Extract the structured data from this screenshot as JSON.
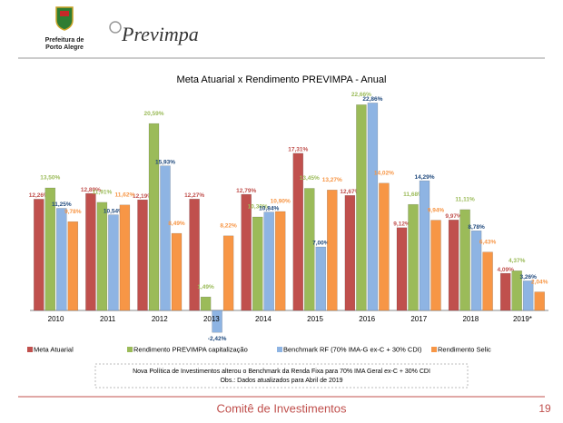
{
  "header": {
    "logo_text_1": "Prefeitura de",
    "logo_text_2": "Porto Alegre",
    "brand": "Previmpa"
  },
  "chart_data": {
    "type": "bar",
    "title": "Meta Atuarial x Rendimento PREVIMPA - Anual",
    "categories": [
      "2010",
      "2011",
      "2012",
      "2013",
      "2014",
      "2015",
      "2016",
      "2017",
      "2018",
      "2019*"
    ],
    "ylim": [
      -3,
      25
    ],
    "series": [
      {
        "name": "Meta Atuarial",
        "color": "#c0504d",
        "values": [
          12.26,
          12.89,
          12.19,
          12.27,
          12.79,
          17.31,
          12.67,
          9.12,
          9.97,
          4.09
        ],
        "value_labels": [
          "12,26%",
          "12,89%",
          "12,19%",
          "12,27%",
          "12,79%",
          "17,31%",
          "12,67%",
          "9,12%",
          "9,97%",
          "4,09%"
        ]
      },
      {
        "name": "Rendimento PREVIMPA capitalização",
        "color": "#9bbb59",
        "values": [
          13.5,
          11.91,
          20.59,
          1.49,
          10.3,
          13.45,
          22.66,
          11.68,
          11.11,
          4.37
        ],
        "value_labels": [
          "13,50%",
          "11,91%",
          "20,59%",
          "1,49%",
          "10,30%",
          "13,45%",
          "22,66%",
          "11,68%",
          "11,11%",
          "4,37%"
        ]
      },
      {
        "name": "Benchmark RF (70% IMA-G ex-C + 30% CDI)",
        "color": "#8eb4e3",
        "values": [
          11.25,
          10.54,
          15.93,
          -2.42,
          10.84,
          7.0,
          22.86,
          14.29,
          8.78,
          3.26
        ],
        "value_labels": [
          "11,25%",
          "10,54%",
          "15,93%",
          "-2,42%",
          "10,84%",
          "7,00%",
          "22,86%",
          "14,29%",
          "8,78%",
          "3,26%"
        ]
      },
      {
        "name": "Rendimento Selic",
        "color": "#f79646",
        "values": [
          9.78,
          11.62,
          8.49,
          8.22,
          10.9,
          13.27,
          14.02,
          9.94,
          6.43,
          2.04
        ],
        "value_labels": [
          "9,78%",
          "11,62%",
          "8,49%",
          "8,22%",
          "10,90%",
          "13,27%",
          "14,02%",
          "9,94%",
          "6,43%",
          "2,04%"
        ]
      }
    ],
    "legend": "bottom",
    "notes": [
      "Nova Política de Investimentos alterou  o Benchmark  da Renda Fixa para 70% IMA Geral ex-C + 30% CDI",
      "Obs.: Dados atualizados para Abril de 2019"
    ]
  },
  "footer": {
    "text": "Comitê de Investimentos",
    "page": "19"
  }
}
